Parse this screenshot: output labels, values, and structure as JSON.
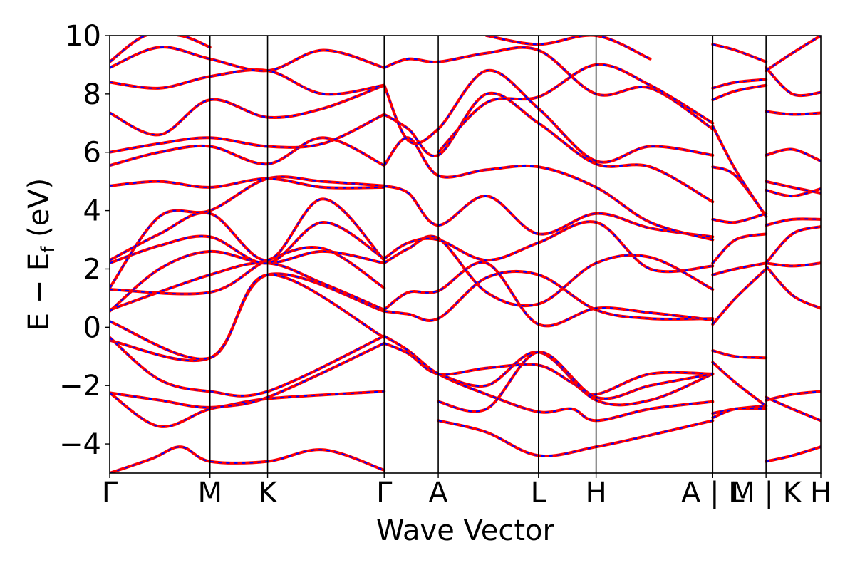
{
  "chart_data": {
    "type": "line",
    "xlabel": "Wave Vector",
    "ylabel": "E − E",
    "ylabel_sub": "f",
    "ylabel_unit": "(eV)",
    "ylim": [
      -5,
      10
    ],
    "yticks": [
      "−4",
      "−2",
      "0",
      "2",
      "4",
      "6",
      "8",
      "10"
    ],
    "ytick_values": [
      -4,
      -2,
      0,
      2,
      4,
      6,
      8,
      10
    ],
    "xlim": [
      0,
      1
    ],
    "xticks": [
      {
        "label": "Γ",
        "x": 0.0
      },
      {
        "label": "M",
        "x": 0.141
      },
      {
        "label": "K",
        "x": 0.222
      },
      {
        "label": "Γ",
        "x": 0.386
      },
      {
        "label": "A",
        "x": 0.462
      },
      {
        "label": "L",
        "x": 0.603
      },
      {
        "label": "H",
        "x": 0.684
      },
      {
        "label": "A | L",
        "x": 0.848
      },
      {
        "label": "M | K",
        "x": 0.923
      },
      {
        "label": "H",
        "x": 1.0
      }
    ],
    "grid": false,
    "legend": "none",
    "series_style": {
      "outer_color": "#ff0000",
      "inner_color": "#0000ff"
    },
    "series": [
      {
        "x": [
          0.0,
          0.141,
          0.222,
          0.386
        ],
        "y": [
          -0.45,
          -1.05,
          1.8,
          0.55
        ]
      },
      {
        "x": [
          0.0,
          0.141,
          0.222,
          0.386
        ],
        "y": [
          0.2,
          -1.05,
          1.8,
          -0.35
        ]
      },
      {
        "x": [
          0.0,
          0.07,
          0.141,
          0.222,
          0.386
        ],
        "y": [
          -0.35,
          -1.8,
          -2.2,
          -2.2,
          -0.3
        ]
      },
      {
        "x": [
          0.0,
          0.07,
          0.141,
          0.222,
          0.386
        ],
        "y": [
          -2.25,
          -2.5,
          -2.75,
          -2.45,
          -2.2
        ]
      },
      {
        "x": [
          0.0,
          0.07,
          0.141,
          0.222,
          0.386
        ],
        "y": [
          -2.25,
          -3.4,
          -2.8,
          -2.4,
          -0.55
        ]
      },
      {
        "x": [
          0.0,
          0.06,
          0.1,
          0.141,
          0.222,
          0.3,
          0.386
        ],
        "y": [
          -5.0,
          -4.5,
          -4.1,
          -4.6,
          -4.6,
          -4.2,
          -4.9
        ]
      },
      {
        "x": [
          0.0,
          0.141,
          0.222,
          0.3,
          0.386
        ],
        "y": [
          0.6,
          1.8,
          2.2,
          1.5,
          0.6
        ]
      },
      {
        "x": [
          0.0,
          0.141,
          0.222,
          0.3,
          0.386
        ],
        "y": [
          1.3,
          1.2,
          2.3,
          2.7,
          1.35
        ]
      },
      {
        "x": [
          0.0,
          0.07,
          0.141,
          0.222,
          0.3,
          0.386
        ],
        "y": [
          0.55,
          2.0,
          2.6,
          2.2,
          2.6,
          2.2
        ]
      },
      {
        "x": [
          0.0,
          0.07,
          0.141,
          0.222,
          0.3,
          0.386
        ],
        "y": [
          2.2,
          2.8,
          3.1,
          2.2,
          3.6,
          2.35
        ]
      },
      {
        "x": [
          0.0,
          0.07,
          0.141,
          0.222,
          0.3,
          0.386
        ],
        "y": [
          2.3,
          3.2,
          3.9,
          2.3,
          4.4,
          2.3
        ]
      },
      {
        "x": [
          0.0,
          0.07,
          0.141,
          0.222,
          0.3,
          0.386
        ],
        "y": [
          1.35,
          3.8,
          4.0,
          5.1,
          5.0,
          4.85
        ]
      },
      {
        "x": [
          0.0,
          0.07,
          0.141,
          0.222,
          0.3,
          0.386
        ],
        "y": [
          4.85,
          5.0,
          4.8,
          5.1,
          4.8,
          4.8
        ]
      },
      {
        "x": [
          0.0,
          0.07,
          0.141,
          0.222,
          0.3,
          0.386
        ],
        "y": [
          5.55,
          6.0,
          6.2,
          5.6,
          6.5,
          5.55
        ]
      },
      {
        "x": [
          0.0,
          0.07,
          0.141,
          0.222,
          0.3,
          0.386
        ],
        "y": [
          6.0,
          6.3,
          6.5,
          6.2,
          6.3,
          7.3
        ]
      },
      {
        "x": [
          0.0,
          0.07,
          0.141,
          0.222,
          0.3,
          0.386
        ],
        "y": [
          7.35,
          6.6,
          7.8,
          7.2,
          7.5,
          8.3
        ]
      },
      {
        "x": [
          0.0,
          0.07,
          0.141,
          0.222,
          0.3,
          0.386
        ],
        "y": [
          8.4,
          8.2,
          8.6,
          8.8,
          8.0,
          8.3
        ]
      },
      {
        "x": [
          0.0,
          0.07,
          0.141,
          0.222,
          0.3,
          0.386
        ],
        "y": [
          8.9,
          9.6,
          9.2,
          8.8,
          9.5,
          8.9
        ]
      },
      {
        "x": [
          0.0,
          0.05,
          0.1,
          0.141
        ],
        "y": [
          9.1,
          10.0,
          10.0,
          9.6
        ]
      },
      {
        "x": [
          0.386,
          0.42,
          0.462,
          0.53,
          0.603,
          0.65,
          0.684,
          0.76,
          0.848
        ],
        "y": [
          -0.55,
          -0.9,
          -1.6,
          -1.4,
          -1.3,
          -1.9,
          -2.3,
          -1.6,
          -1.6
        ]
      },
      {
        "x": [
          0.386,
          0.42,
          0.462,
          0.53,
          0.603,
          0.65,
          0.684,
          0.76,
          0.848
        ],
        "y": [
          -0.3,
          -0.8,
          -1.6,
          -2.3,
          -2.9,
          -2.8,
          -3.2,
          -2.8,
          -2.55
        ]
      },
      {
        "x": [
          0.462,
          0.53,
          0.603,
          0.684,
          0.76,
          0.848
        ],
        "y": [
          -1.6,
          -2.0,
          -0.85,
          -2.5,
          -2.5,
          -1.6
        ]
      },
      {
        "x": [
          0.462,
          0.53,
          0.603,
          0.684,
          0.76,
          0.848
        ],
        "y": [
          -2.55,
          -2.8,
          -0.85,
          -2.4,
          -2.0,
          -1.6
        ]
      },
      {
        "x": [
          0.462,
          0.53,
          0.603,
          0.684,
          0.76,
          0.848
        ],
        "y": [
          -3.2,
          -3.6,
          -4.4,
          -4.1,
          -3.7,
          -3.2
        ]
      },
      {
        "x": [
          0.386,
          0.42,
          0.462,
          0.53,
          0.603,
          0.684,
          0.76,
          0.848
        ],
        "y": [
          0.55,
          0.45,
          0.3,
          1.7,
          1.8,
          0.6,
          0.3,
          0.3
        ]
      },
      {
        "x": [
          0.386,
          0.42,
          0.462,
          0.53,
          0.603,
          0.684,
          0.76,
          0.848
        ],
        "y": [
          0.6,
          1.2,
          1.25,
          2.2,
          0.1,
          0.65,
          0.5,
          0.25
        ]
      },
      {
        "x": [
          0.386,
          0.42,
          0.462,
          0.53,
          0.603,
          0.684,
          0.76,
          0.848
        ],
        "y": [
          2.2,
          2.7,
          3.05,
          1.2,
          0.8,
          2.2,
          2.4,
          1.3
        ]
      },
      {
        "x": [
          0.386,
          0.42,
          0.462,
          0.53,
          0.603,
          0.684,
          0.76,
          0.848
        ],
        "y": [
          2.35,
          2.9,
          3.0,
          2.3,
          2.9,
          3.6,
          2.0,
          2.1
        ]
      },
      {
        "x": [
          0.386,
          0.42,
          0.462,
          0.53,
          0.603,
          0.684,
          0.76,
          0.848
        ],
        "y": [
          4.85,
          4.6,
          3.5,
          4.5,
          3.2,
          3.9,
          3.4,
          3.1
        ]
      },
      {
        "x": [
          0.386,
          0.42,
          0.462,
          0.53,
          0.603,
          0.684,
          0.76,
          0.848
        ],
        "y": [
          5.55,
          6.5,
          5.2,
          5.4,
          5.5,
          4.8,
          3.6,
          3.0
        ]
      },
      {
        "x": [
          0.386,
          0.42,
          0.462,
          0.53,
          0.603,
          0.684,
          0.76,
          0.848
        ],
        "y": [
          7.3,
          6.8,
          5.9,
          8.0,
          7.0,
          5.6,
          5.5,
          4.3
        ]
      },
      {
        "x": [
          0.386,
          0.42,
          0.462,
          0.53,
          0.603,
          0.684,
          0.76,
          0.848
        ],
        "y": [
          8.3,
          6.4,
          6.8,
          8.8,
          7.5,
          5.7,
          6.2,
          5.9
        ]
      },
      {
        "x": [
          0.386,
          0.42,
          0.462,
          0.53,
          0.603,
          0.684,
          0.76,
          0.848
        ],
        "y": [
          8.9,
          9.2,
          9.1,
          9.4,
          9.5,
          8.0,
          8.2,
          6.8
        ]
      },
      {
        "x": [
          0.462,
          0.53,
          0.603,
          0.684,
          0.76,
          0.848
        ],
        "y": [
          6.0,
          7.7,
          7.9,
          9.0,
          8.3,
          7.0
        ]
      },
      {
        "x": [
          0.53,
          0.603,
          0.684,
          0.76
        ],
        "y": [
          10.0,
          9.7,
          10.0,
          9.2
        ]
      },
      {
        "x": [
          0.848,
          0.88,
          0.923
        ],
        "y": [
          -1.2,
          -1.9,
          -2.7
        ]
      },
      {
        "x": [
          0.848,
          0.88,
          0.923
        ],
        "y": [
          -0.8,
          -1.0,
          -1.05
        ]
      },
      {
        "x": [
          0.848,
          0.88,
          0.923
        ],
        "y": [
          -2.95,
          -2.8,
          -2.7
        ]
      },
      {
        "x": [
          0.848,
          0.88,
          0.923
        ],
        "y": [
          -3.1,
          -2.8,
          -2.8
        ]
      },
      {
        "x": [
          0.848,
          0.88,
          0.923
        ],
        "y": [
          0.1,
          1.0,
          2.0
        ]
      },
      {
        "x": [
          0.848,
          0.88,
          0.923
        ],
        "y": [
          1.8,
          2.0,
          2.2
        ]
      },
      {
        "x": [
          0.848,
          0.88,
          0.923
        ],
        "y": [
          2.2,
          3.0,
          3.2
        ]
      },
      {
        "x": [
          0.848,
          0.88,
          0.923
        ],
        "y": [
          3.7,
          3.6,
          3.9
        ]
      },
      {
        "x": [
          0.848,
          0.88,
          0.923
        ],
        "y": [
          5.5,
          5.2,
          3.8
        ]
      },
      {
        "x": [
          0.848,
          0.88,
          0.923
        ],
        "y": [
          6.9,
          5.4,
          3.8
        ]
      },
      {
        "x": [
          0.848,
          0.88,
          0.923
        ],
        "y": [
          7.8,
          8.1,
          8.3
        ]
      },
      {
        "x": [
          0.848,
          0.88,
          0.923
        ],
        "y": [
          8.2,
          8.4,
          8.5
        ]
      },
      {
        "x": [
          0.848,
          0.88,
          0.923
        ],
        "y": [
          9.7,
          9.5,
          9.1
        ]
      },
      {
        "x": [
          0.923,
          0.96,
          1.0
        ],
        "y": [
          -2.5,
          -2.3,
          -2.2
        ]
      },
      {
        "x": [
          0.923,
          0.96,
          1.0
        ],
        "y": [
          -2.4,
          -2.8,
          -3.2
        ]
      },
      {
        "x": [
          0.923,
          0.96,
          1.0
        ],
        "y": [
          -4.6,
          -4.4,
          -4.1
        ]
      },
      {
        "x": [
          0.923,
          0.96,
          1.0
        ],
        "y": [
          2.1,
          1.1,
          0.65
        ]
      },
      {
        "x": [
          0.923,
          0.96,
          1.0
        ],
        "y": [
          2.2,
          2.1,
          2.2
        ]
      },
      {
        "x": [
          0.923,
          0.96,
          1.0
        ],
        "y": [
          2.2,
          3.2,
          3.45
        ]
      },
      {
        "x": [
          0.923,
          0.96,
          1.0
        ],
        "y": [
          3.5,
          3.7,
          3.7
        ]
      },
      {
        "x": [
          0.923,
          0.96,
          1.0
        ],
        "y": [
          4.7,
          4.5,
          4.75
        ]
      },
      {
        "x": [
          0.923,
          0.96,
          1.0
        ],
        "y": [
          5.0,
          4.8,
          4.6
        ]
      },
      {
        "x": [
          0.923,
          0.96,
          1.0
        ],
        "y": [
          5.9,
          6.1,
          5.7
        ]
      },
      {
        "x": [
          0.923,
          0.96,
          1.0
        ],
        "y": [
          7.4,
          7.3,
          7.35
        ]
      },
      {
        "x": [
          0.923,
          0.96,
          1.0
        ],
        "y": [
          8.9,
          8.0,
          8.05
        ]
      },
      {
        "x": [
          0.923,
          0.96,
          1.0
        ],
        "y": [
          8.8,
          9.4,
          10.0
        ]
      }
    ]
  }
}
